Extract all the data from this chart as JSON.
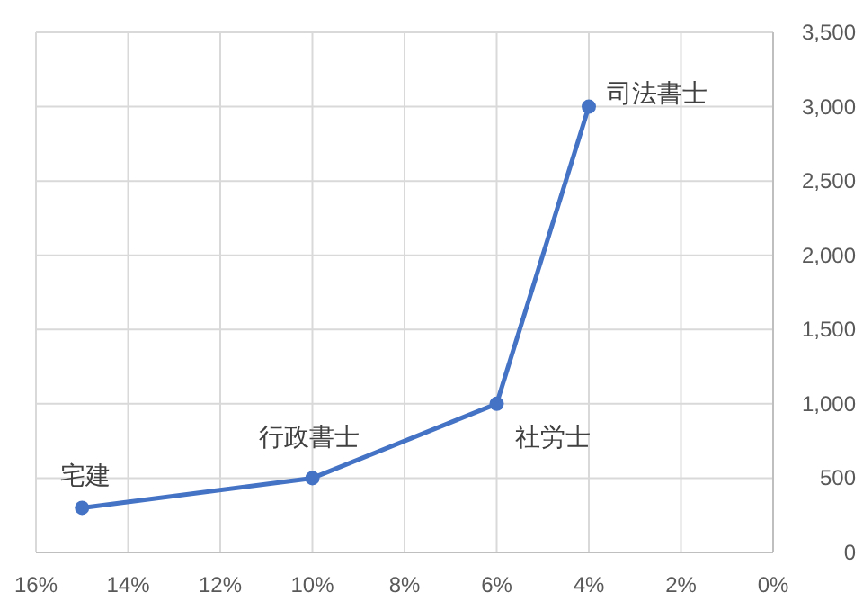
{
  "chart_data": {
    "type": "line",
    "series": [
      {
        "color": "#4472c4",
        "x": [
          15,
          10,
          6,
          4
        ],
        "values": [
          300,
          500,
          1000,
          3000
        ]
      }
    ],
    "xlim": [
      16,
      0
    ],
    "xticks": [
      {
        "value": 16,
        "label": "16%"
      },
      {
        "value": 14,
        "label": "14%"
      },
      {
        "value": 12,
        "label": "12%"
      },
      {
        "value": 10,
        "label": "10%"
      },
      {
        "value": 8,
        "label": "8%"
      },
      {
        "value": 6,
        "label": "6%"
      },
      {
        "value": 4,
        "label": "4%"
      },
      {
        "value": 2,
        "label": "2%"
      },
      {
        "value": 0,
        "label": "0%"
      }
    ],
    "ylim": [
      0,
      3500
    ],
    "yticks": [
      0,
      500,
      {
        "value": 1000,
        "label": "1,000"
      },
      {
        "value": 1500,
        "label": "1,500"
      },
      {
        "value": 2000,
        "label": "2,000"
      },
      {
        "value": 2500,
        "label": "2,500"
      },
      {
        "value": 3000,
        "label": "3,000"
      },
      {
        "value": 3500,
        "label": "3,500"
      }
    ],
    "grid": true,
    "marker": "circle",
    "line_style": "solid",
    "annotations": [
      {
        "text": "宅建",
        "x": 15,
        "y": 300
      },
      {
        "text": "行政書士",
        "x": 10,
        "y": 500
      },
      {
        "text": "社労士",
        "x": 6,
        "y": 1000
      },
      {
        "text": "司法書士",
        "x": 4,
        "y": 3000
      }
    ]
  }
}
